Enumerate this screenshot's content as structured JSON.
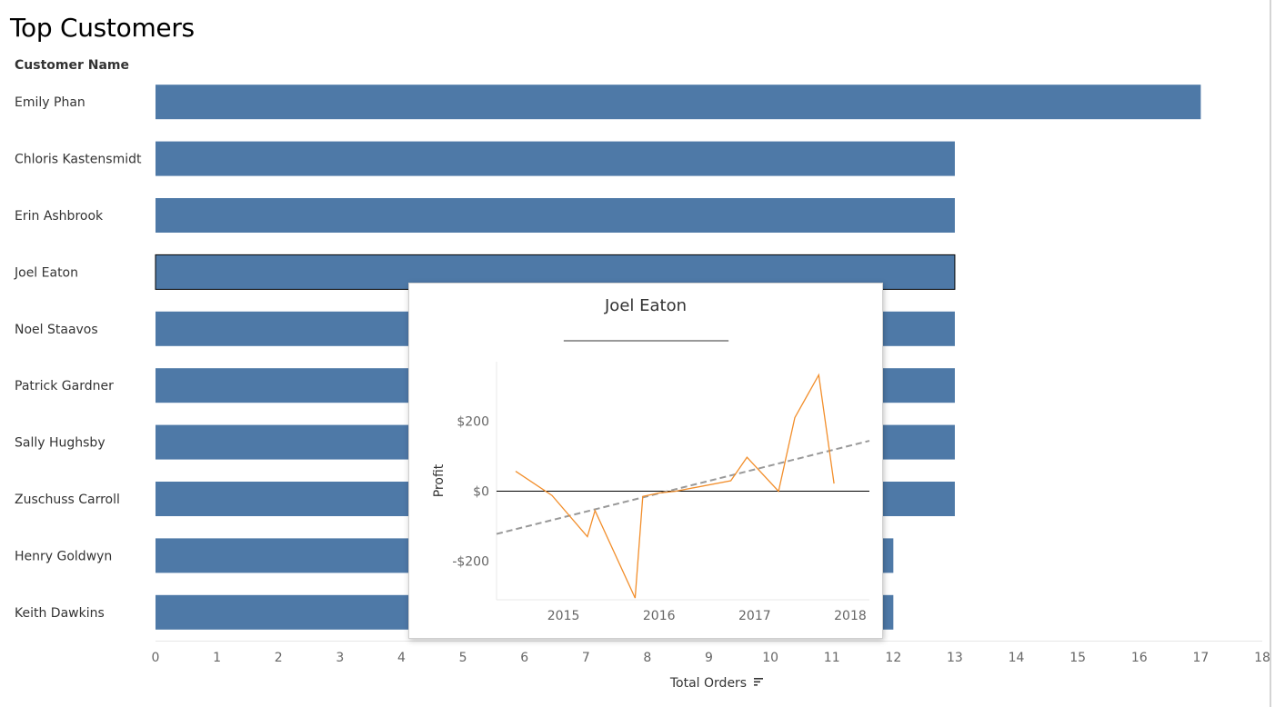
{
  "page": {
    "title": "Top Customers"
  },
  "chart_data": [
    {
      "type": "bar",
      "orientation": "horizontal",
      "title": "Top Customers",
      "row_header": "Customer Name",
      "categories": [
        "Emily Phan",
        "Chloris Kastensmidt",
        "Erin Ashbrook",
        "Joel Eaton",
        "Noel Staavos",
        "Patrick Gardner",
        "Sally Hughsby",
        "Zuschuss Carroll",
        "Henry Goldwyn",
        "Keith Dawkins"
      ],
      "values": [
        17,
        13,
        13,
        13,
        13,
        13,
        13,
        13,
        12,
        12
      ],
      "xlabel": "Total Orders",
      "xlim": [
        0,
        18
      ],
      "xticks": [
        0,
        1,
        2,
        3,
        4,
        5,
        6,
        7,
        8,
        9,
        10,
        11,
        12,
        13,
        14,
        15,
        16,
        17,
        18
      ],
      "xtick_labels": [
        "0",
        "1",
        "2",
        "3",
        "4",
        "5",
        "6",
        "7",
        "8",
        "9",
        "10",
        "11",
        "12",
        "13",
        "14",
        "15",
        "16",
        "17",
        "18"
      ],
      "selected_category": "Joel Eaton",
      "sort_icon": "sort-descending-icon",
      "bar_color": "#4e79a7"
    },
    {
      "type": "line",
      "title": "Joel Eaton",
      "divider_text": "______________________________",
      "ylabel": "Profit",
      "xlim": [
        2014.3,
        2018.2
      ],
      "ylim": [
        -310,
        370
      ],
      "xticks": [
        2015,
        2016,
        2017,
        2018
      ],
      "xtick_labels": [
        "2015",
        "2016",
        "2017",
        "2018"
      ],
      "yticks": [
        -200,
        0,
        200
      ],
      "ytick_labels": [
        "-$200",
        "$0",
        "$200"
      ],
      "series": [
        {
          "x": [
            2014.5,
            2014.88,
            2015.25,
            2015.33,
            2015.75,
            2015.83,
            2016.0,
            2016.17,
            2016.75,
            2016.92,
            2017.25,
            2017.42,
            2017.67,
            2017.83
          ],
          "y": [
            57,
            -12,
            -130,
            -55,
            -305,
            -15,
            -5,
            0,
            30,
            97,
            0,
            210,
            332,
            22
          ],
          "color": "#f28e2b"
        }
      ],
      "trendline": {
        "x": [
          2014.3,
          2018.2
        ],
        "y": [
          -122,
          144
        ],
        "color": "#999999",
        "style": "dashed"
      }
    }
  ]
}
